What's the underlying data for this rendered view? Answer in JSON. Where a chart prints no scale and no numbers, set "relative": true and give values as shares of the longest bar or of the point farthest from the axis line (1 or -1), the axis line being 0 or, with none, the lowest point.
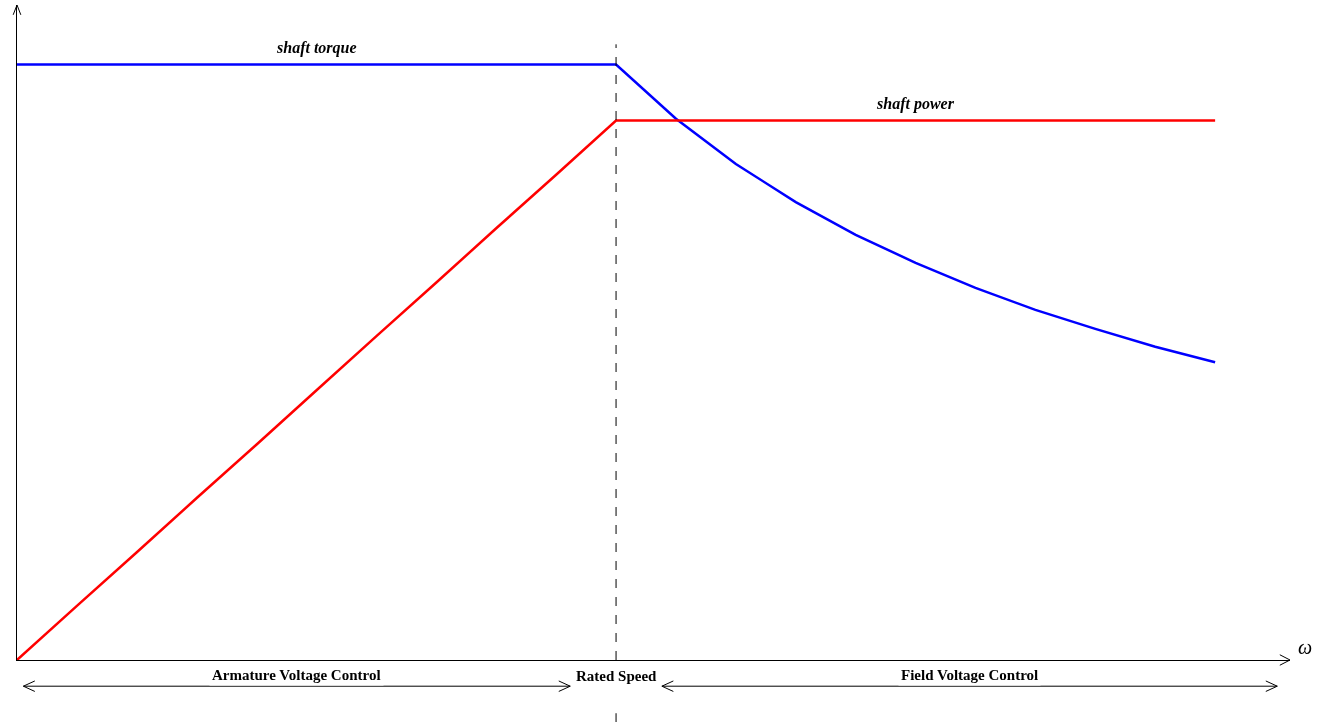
{
  "chart_data": {
    "type": "line",
    "relative": true,
    "xlabel": "ω",
    "categories": [
      null,
      null,
      null,
      null,
      null,
      null,
      null,
      null,
      null,
      null,
      null,
      null,
      null,
      null,
      null,
      null,
      null,
      null,
      null,
      null,
      null
    ],
    "series": [
      {
        "name": "shaft torque",
        "color": "#0000ff",
        "values": [
          1,
          1,
          1,
          1,
          1,
          1,
          1,
          1,
          1,
          1,
          1,
          0.909,
          0.833,
          0.769,
          0.714,
          0.667,
          0.625,
          0.588,
          0.556,
          0.526,
          0.5
        ]
      },
      {
        "name": "shaft power",
        "color": "#ff0000",
        "values": [
          0,
          0.091,
          0.181,
          0.272,
          0.362,
          0.453,
          0.544,
          0.634,
          0.725,
          0.815,
          0.906,
          0.906,
          0.906,
          0.906,
          0.906,
          0.906,
          0.906,
          0.906,
          0.906,
          0.906,
          0.906
        ]
      }
    ],
    "annotations": [
      "Armature Voltage Control",
      "Rated Speed",
      "Field Voltage Control"
    ],
    "grid": false,
    "legend": false,
    "marker": "none",
    "line_style": "solid"
  }
}
